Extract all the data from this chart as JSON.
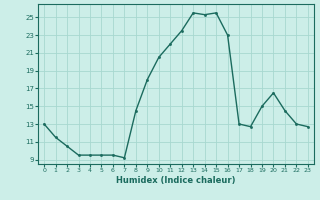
{
  "x": [
    0,
    1,
    2,
    3,
    4,
    5,
    6,
    7,
    8,
    9,
    10,
    11,
    12,
    13,
    14,
    15,
    16,
    17,
    18,
    19,
    20,
    21,
    22,
    23
  ],
  "y": [
    13,
    11.5,
    10.5,
    9.5,
    9.5,
    9.5,
    9.5,
    9.2,
    14.5,
    18.0,
    20.5,
    22.0,
    23.5,
    25.5,
    25.3,
    25.5,
    23.0,
    13.0,
    12.7,
    15.0,
    16.5,
    14.5,
    13.0,
    12.7
  ],
  "line_color": "#1b6b5e",
  "marker_color": "#1b6b5e",
  "bg_color": "#cceee8",
  "grid_color": "#a8d8d0",
  "xlabel": "Humidex (Indice chaleur)",
  "yticks": [
    9,
    11,
    13,
    15,
    17,
    19,
    21,
    23,
    25
  ],
  "xticks": [
    0,
    1,
    2,
    3,
    4,
    5,
    6,
    7,
    8,
    9,
    10,
    11,
    12,
    13,
    14,
    15,
    16,
    17,
    18,
    19,
    20,
    21,
    22,
    23
  ],
  "ylim": [
    8.5,
    26.5
  ],
  "xlim": [
    -0.5,
    23.5
  ]
}
